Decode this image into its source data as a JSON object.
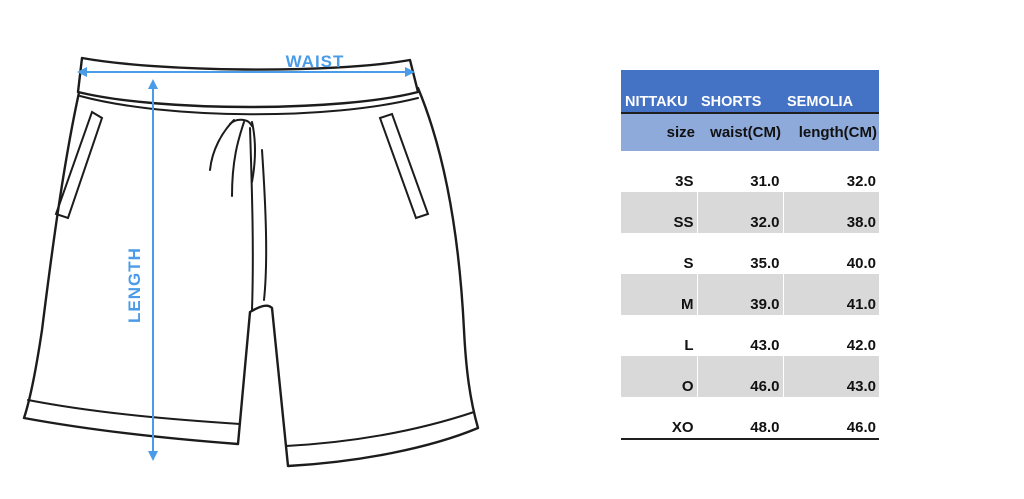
{
  "diagram": {
    "waist_label": "WAIST",
    "length_label": "LENGTH",
    "arrow_color": "#4a9be8"
  },
  "table": {
    "brand": [
      "NITTAKU",
      "SHORTS",
      "SEMOLIA"
    ],
    "headers": [
      "size",
      "waist(CM)",
      "length(CM)"
    ],
    "rows": [
      {
        "size": "3S",
        "waist": "31.0",
        "length": "32.0"
      },
      {
        "size": "SS",
        "waist": "32.0",
        "length": "38.0"
      },
      {
        "size": "S",
        "waist": "35.0",
        "length": "40.0"
      },
      {
        "size": "M",
        "waist": "39.0",
        "length": "41.0"
      },
      {
        "size": "L",
        "waist": "43.0",
        "length": "42.0"
      },
      {
        "size": "O",
        "waist": "46.0",
        "length": "43.0"
      },
      {
        "size": "XO",
        "waist": "48.0",
        "length": "46.0"
      }
    ],
    "colors": {
      "brand_bg": "#4472c4",
      "header_bg": "#8eaadb",
      "row_white": "#ffffff",
      "row_gray": "#d9d9d9"
    }
  }
}
